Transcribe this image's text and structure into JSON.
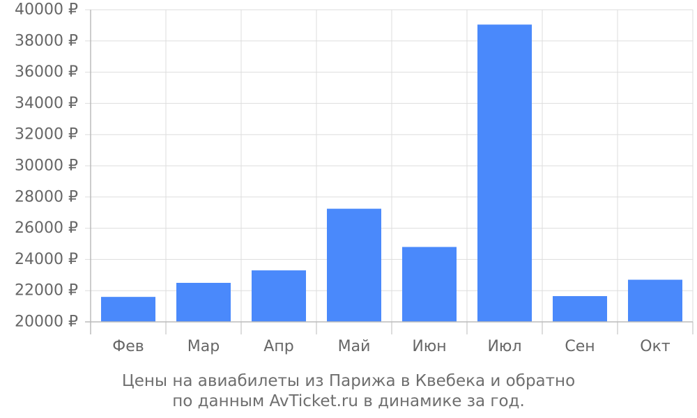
{
  "caption": {
    "line1": "Цены на авиабилеты из Парижа в Квебека и обратно",
    "line2": "по данным AvTicket.ru в динамике за год."
  },
  "colors": {
    "bar": "#4a89fb",
    "grid": "#dddddd",
    "axis": "#bbbbbb",
    "text": "#666666"
  },
  "chart_data": {
    "type": "bar",
    "title": "",
    "xlabel": "",
    "ylabel": "",
    "categories": [
      "Фев",
      "Мар",
      "Апр",
      "Май",
      "Июн",
      "Июл",
      "Сен",
      "Окт"
    ],
    "values": [
      21600,
      22500,
      23300,
      27250,
      24800,
      39050,
      21650,
      22700
    ],
    "ylim": [
      20000,
      40000
    ],
    "yticks": [
      20000,
      22000,
      24000,
      26000,
      28000,
      30000,
      32000,
      34000,
      36000,
      38000,
      40000
    ],
    "ytick_suffix": " ₽",
    "grid": true,
    "legend": "none"
  }
}
